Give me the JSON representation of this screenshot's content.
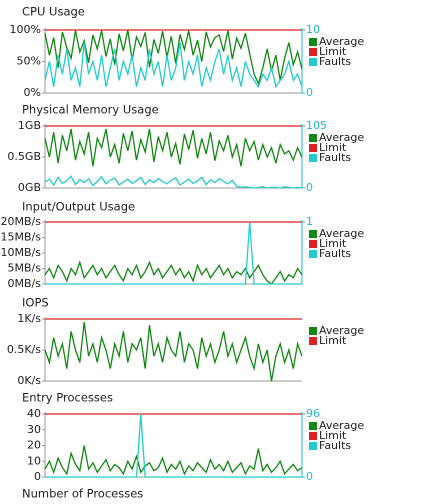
{
  "chart_data": [
    {
      "type": "line",
      "title": "CPU Usage",
      "ylim": [
        0,
        100
      ],
      "yticks": [
        {
          "value": 0,
          "label": "0%"
        },
        {
          "value": 50,
          "label": "50%"
        },
        {
          "value": 100,
          "label": "100%"
        }
      ],
      "y2lim": [
        0,
        10
      ],
      "y2ticks": [
        0,
        10
      ],
      "series": [
        {
          "name": "Average",
          "color": "#118811",
          "values": [
            95,
            60,
            88,
            40,
            97,
            72,
            55,
            99,
            65,
            83,
            48,
            92,
            70,
            99,
            58,
            86,
            45,
            94,
            67,
            100,
            52,
            89,
            74,
            96,
            41,
            85,
            63,
            98,
            57,
            90,
            47,
            93,
            69,
            99,
            60,
            84,
            50,
            97,
            73,
            88,
            92,
            66,
            99,
            54,
            87,
            71,
            95,
            62,
            30,
            15,
            40,
            70,
            35,
            60,
            20,
            55,
            80,
            45,
            65,
            38
          ]
        },
        {
          "name": "Limit",
          "color": "#dd2222",
          "value": 100
        },
        {
          "name": "Faults",
          "color": "#22cccc",
          "axis": "y2",
          "values": [
            2,
            5,
            1,
            6,
            3,
            7,
            2,
            4,
            1,
            8,
            3,
            5,
            2,
            6,
            1,
            4,
            7,
            2,
            5,
            3,
            6,
            1,
            4,
            2,
            7,
            3,
            5,
            1,
            6,
            2,
            4,
            8,
            2,
            5,
            3,
            6,
            1,
            4,
            2,
            5,
            7,
            3,
            6,
            2,
            4,
            1,
            5,
            3,
            2,
            1,
            3,
            2,
            4,
            1,
            2,
            3,
            5,
            2,
            3,
            1
          ]
        }
      ]
    },
    {
      "type": "line",
      "title": "Physical Memory Usage",
      "ylim": [
        0,
        1
      ],
      "yticks": [
        {
          "value": 0,
          "label": "0GB"
        },
        {
          "value": 0.5,
          "label": "0.5GB"
        },
        {
          "value": 1,
          "label": "1GB"
        }
      ],
      "y2lim": [
        0,
        105
      ],
      "y2ticks": [
        0,
        105
      ],
      "series": [
        {
          "name": "Average",
          "color": "#118811",
          "values": [
            0.8,
            0.5,
            0.9,
            0.4,
            0.85,
            0.6,
            0.95,
            0.45,
            0.75,
            0.55,
            0.9,
            0.35,
            0.8,
            0.65,
            0.95,
            0.5,
            0.7,
            0.4,
            0.88,
            0.6,
            0.92,
            0.45,
            0.78,
            0.58,
            0.95,
            0.42,
            0.83,
            0.6,
            0.9,
            0.5,
            0.72,
            0.38,
            0.87,
            0.62,
            0.93,
            0.48,
            0.8,
            0.55,
            0.9,
            0.44,
            0.76,
            0.6,
            0.85,
            0.5,
            0.7,
            0.35,
            0.8,
            0.6,
            0.75,
            0.45,
            0.7,
            0.5,
            0.65,
            0.4,
            0.7,
            0.55,
            0.6,
            0.45,
            0.65,
            0.5
          ]
        },
        {
          "name": "Limit",
          "color": "#dd2222",
          "value": 1
        },
        {
          "name": "Faults",
          "color": "#22cccc",
          "axis": "y2",
          "values": [
            10,
            15,
            5,
            18,
            8,
            12,
            20,
            6,
            14,
            9,
            16,
            4,
            11,
            19,
            7,
            13,
            17,
            5,
            10,
            15,
            8,
            12,
            18,
            6,
            14,
            9,
            16,
            11,
            7,
            13,
            17,
            5,
            10,
            15,
            8,
            12,
            18,
            6,
            14,
            9,
            16,
            11,
            7,
            13,
            3,
            1,
            2,
            1,
            0,
            1,
            2,
            0,
            1,
            1,
            0,
            2,
            1,
            0,
            1,
            0
          ]
        }
      ]
    },
    {
      "type": "line",
      "title": "Input/Output Usage",
      "ylim": [
        0,
        20
      ],
      "yticks": [
        {
          "value": 0,
          "label": "0MB/s"
        },
        {
          "value": 5,
          "label": "5MB/s"
        },
        {
          "value": 10,
          "label": "10MB/s"
        },
        {
          "value": 15,
          "label": "15MB/s"
        },
        {
          "value": 20,
          "label": "20MB/s"
        }
      ],
      "y2lim": [
        0,
        1
      ],
      "y2ticks": [
        1
      ],
      "series": [
        {
          "name": "Average",
          "color": "#118811",
          "values": [
            3,
            5,
            2,
            6,
            4,
            1,
            5,
            3,
            7,
            2,
            4,
            6,
            3,
            5,
            2,
            4,
            6,
            3,
            1,
            5,
            3,
            6,
            2,
            4,
            7,
            3,
            5,
            2,
            4,
            6,
            3,
            5,
            2,
            4,
            1,
            6,
            3,
            5,
            2,
            4,
            6,
            3,
            5,
            2,
            4,
            3,
            5,
            2,
            4,
            6,
            3,
            1,
            0,
            2,
            4,
            1,
            3,
            2,
            5,
            3
          ]
        },
        {
          "name": "Limit",
          "color": "#dd2222",
          "value": 20
        },
        {
          "name": "Faults",
          "color": "#22cccc",
          "axis": "y2",
          "values": [
            0,
            0,
            0,
            0,
            0,
            0,
            0,
            0,
            0,
            0,
            0,
            0,
            0,
            0,
            0,
            0,
            0,
            0,
            0,
            0,
            0,
            0,
            0,
            0,
            0,
            0,
            0,
            0,
            0,
            0,
            0,
            0,
            0,
            0,
            0,
            0,
            0,
            0,
            0,
            0,
            0,
            0,
            0,
            0,
            0,
            0,
            0,
            1,
            0,
            0,
            0,
            0,
            0,
            0,
            0,
            0,
            0,
            0,
            0,
            0
          ]
        }
      ]
    },
    {
      "type": "line",
      "title": "IOPS",
      "ylim": [
        0,
        1
      ],
      "yticks": [
        {
          "value": 0,
          "label": "0K/s"
        },
        {
          "value": 0.5,
          "label": "0.5K/s"
        },
        {
          "value": 1,
          "label": "1K/s"
        }
      ],
      "series": [
        {
          "name": "Average",
          "color": "#118811",
          "values": [
            0.5,
            0.3,
            0.7,
            0.4,
            0.6,
            0.2,
            0.8,
            0.5,
            0.3,
            0.95,
            0.4,
            0.6,
            0.3,
            0.7,
            0.5,
            0.2,
            0.6,
            0.4,
            0.8,
            0.3,
            0.6,
            0.5,
            0.7,
            0.2,
            0.9,
            0.4,
            0.6,
            0.3,
            0.7,
            0.5,
            0.4,
            0.8,
            0.3,
            0.6,
            0.5,
            0.2,
            0.7,
            0.4,
            0.6,
            0.3,
            0.5,
            0.8,
            0.4,
            0.6,
            0.3,
            0.5,
            0.7,
            0.4,
            0.2,
            0.6,
            0.3,
            0.5,
            0,
            0.4,
            0.6,
            0.3,
            0.5,
            0.2,
            0.6,
            0.4
          ]
        },
        {
          "name": "Limit",
          "color": "#dd2222",
          "value": 1
        }
      ]
    },
    {
      "type": "line",
      "title": "Entry Processes",
      "ylim": [
        0,
        40
      ],
      "yticks": [
        0,
        10,
        20,
        30,
        40
      ],
      "y2lim": [
        0,
        96
      ],
      "y2ticks": [
        0,
        96
      ],
      "series": [
        {
          "name": "Average",
          "color": "#118811",
          "values": [
            5,
            10,
            3,
            12,
            6,
            2,
            15,
            8,
            4,
            20,
            5,
            9,
            3,
            7,
            11,
            4,
            8,
            6,
            2,
            10,
            5,
            13,
            3,
            7,
            9,
            4,
            6,
            12,
            3,
            8,
            5,
            10,
            2,
            7,
            4,
            9,
            6,
            3,
            11,
            5,
            8,
            4,
            10,
            3,
            6,
            9,
            2,
            7,
            5,
            18,
            4,
            8,
            3,
            6,
            10,
            2,
            5,
            8,
            4,
            6
          ]
        },
        {
          "name": "Limit",
          "color": "#dd2222",
          "value": 40
        },
        {
          "name": "Faults",
          "color": "#22cccc",
          "axis": "y2",
          "values": [
            0,
            0,
            0,
            0,
            0,
            0,
            0,
            0,
            0,
            0,
            0,
            0,
            0,
            0,
            0,
            0,
            0,
            0,
            0,
            0,
            0,
            0,
            96,
            0,
            0,
            0,
            0,
            0,
            0,
            0,
            0,
            0,
            0,
            0,
            0,
            0,
            0,
            0,
            0,
            0,
            0,
            0,
            0,
            0,
            0,
            0,
            0,
            0,
            0,
            0,
            0,
            0,
            0,
            0,
            0,
            0,
            0,
            0,
            0,
            0
          ]
        }
      ]
    }
  ],
  "next_section_title": "Number of Processes"
}
